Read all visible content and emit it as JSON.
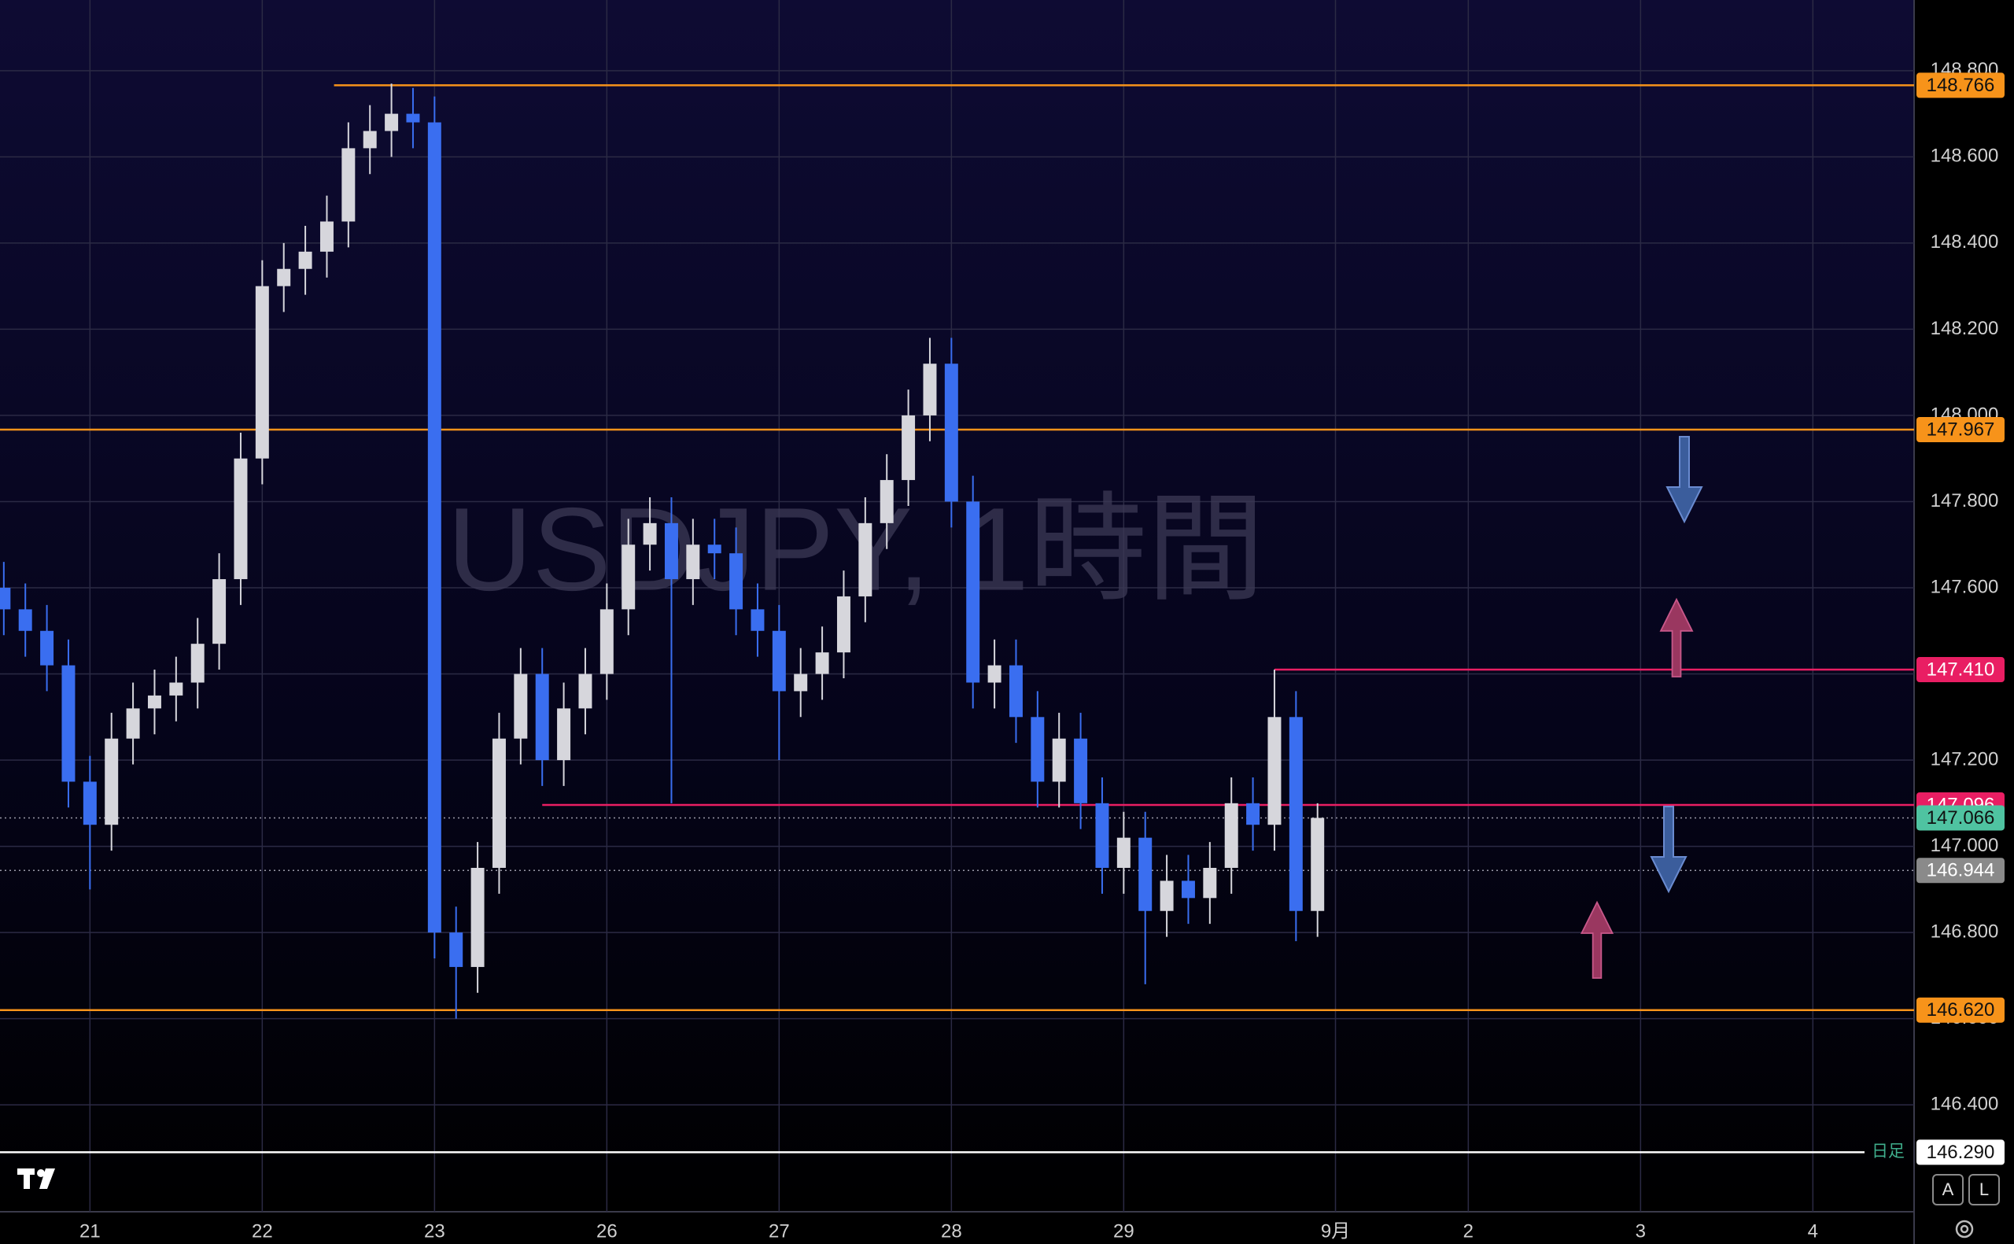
{
  "chart_data": {
    "type": "candlestick",
    "title": "USDJPY, 1時間",
    "x": [
      -12,
      -9,
      -6,
      -3,
      0,
      3,
      6,
      9,
      12,
      15,
      18,
      21,
      24,
      27,
      30,
      33,
      36,
      39,
      42,
      45,
      48,
      51,
      54,
      57,
      60,
      63,
      66,
      69,
      72,
      75,
      78,
      81,
      84,
      87,
      90,
      93,
      96,
      99,
      102,
      105,
      108,
      111,
      114,
      117,
      120,
      123,
      126,
      129,
      132,
      135,
      138,
      141,
      144,
      147,
      150,
      153,
      156,
      159,
      162,
      165,
      168,
      171
    ],
    "open": [
      147.6,
      147.55,
      147.5,
      147.42,
      147.15,
      147.05,
      147.25,
      147.32,
      147.35,
      147.38,
      147.47,
      147.62,
      147.9,
      148.3,
      148.34,
      148.38,
      148.45,
      148.62,
      148.66,
      148.7,
      148.68,
      146.8,
      146.72,
      146.95,
      147.25,
      147.4,
      147.2,
      147.32,
      147.4,
      147.55,
      147.7,
      147.75,
      147.62,
      147.7,
      147.68,
      147.55,
      147.5,
      147.36,
      147.4,
      147.45,
      147.58,
      147.75,
      147.85,
      148.0,
      148.12,
      147.8,
      147.38,
      147.42,
      147.3,
      147.15,
      147.25,
      147.1,
      146.95,
      147.02,
      146.85,
      146.92,
      146.88,
      146.95,
      147.1,
      147.05,
      147.3,
      146.85
    ],
    "high": [
      147.66,
      147.61,
      147.56,
      147.48,
      147.21,
      147.31,
      147.38,
      147.41,
      147.44,
      147.53,
      147.68,
      147.96,
      148.36,
      148.4,
      148.44,
      148.51,
      148.68,
      148.72,
      148.77,
      148.76,
      148.74,
      146.86,
      147.01,
      147.31,
      147.46,
      147.46,
      147.38,
      147.46,
      147.61,
      147.76,
      147.81,
      147.81,
      147.76,
      147.76,
      147.74,
      147.61,
      147.56,
      147.46,
      147.51,
      147.64,
      147.81,
      147.91,
      148.06,
      148.18,
      148.18,
      147.86,
      147.48,
      147.48,
      147.36,
      147.31,
      147.31,
      147.16,
      147.08,
      147.08,
      146.98,
      146.98,
      147.01,
      147.16,
      147.16,
      147.41,
      147.36,
      147.1
    ],
    "low": [
      147.49,
      147.44,
      147.36,
      147.09,
      146.9,
      146.99,
      147.19,
      147.26,
      147.29,
      147.32,
      147.41,
      147.56,
      147.84,
      148.24,
      148.28,
      148.32,
      148.39,
      148.56,
      148.6,
      148.62,
      146.74,
      146.6,
      146.66,
      146.89,
      147.19,
      147.14,
      147.14,
      147.26,
      147.34,
      147.49,
      147.64,
      147.1,
      147.56,
      147.62,
      147.49,
      147.44,
      147.2,
      147.3,
      147.34,
      147.39,
      147.52,
      147.69,
      147.79,
      147.94,
      147.74,
      147.32,
      147.32,
      147.24,
      147.09,
      147.09,
      147.04,
      146.89,
      146.89,
      146.68,
      146.79,
      146.82,
      146.82,
      146.89,
      146.99,
      146.99,
      146.78,
      146.79
    ],
    "close": [
      147.55,
      147.5,
      147.42,
      147.15,
      147.05,
      147.25,
      147.32,
      147.35,
      147.38,
      147.47,
      147.62,
      147.9,
      148.3,
      148.34,
      148.38,
      148.45,
      148.62,
      148.66,
      148.7,
      148.68,
      146.8,
      146.72,
      146.95,
      147.25,
      147.4,
      147.2,
      147.32,
      147.4,
      147.55,
      147.7,
      147.75,
      147.62,
      147.7,
      147.68,
      147.55,
      147.5,
      147.36,
      147.4,
      147.45,
      147.58,
      147.75,
      147.85,
      148.0,
      148.12,
      147.8,
      147.38,
      147.42,
      147.3,
      147.15,
      147.25,
      147.1,
      146.95,
      147.02,
      146.85,
      146.92,
      146.88,
      146.95,
      147.1,
      147.05,
      147.3,
      146.85,
      147.066
    ],
    "up_color": "#d6d6dc",
    "down_color": "#3a6ef0",
    "xlim": [
      -12.53,
      254.1
    ],
    "xticks": [
      {
        "value": 0,
        "label": "21"
      },
      {
        "value": 24,
        "label": "22"
      },
      {
        "value": 48,
        "label": "23"
      },
      {
        "value": 72,
        "label": "26"
      },
      {
        "value": 96,
        "label": "27"
      },
      {
        "value": 120,
        "label": "28"
      },
      {
        "value": 144,
        "label": "29"
      },
      {
        "value": 173.5,
        "label": "9月"
      },
      {
        "value": 192,
        "label": "2"
      },
      {
        "value": 216,
        "label": "3"
      },
      {
        "value": 240,
        "label": "4"
      }
    ],
    "ylim": [
      146.152,
      148.964
    ],
    "yticks": [
      {
        "value": 146.4,
        "label": "146.400"
      },
      {
        "value": 146.6,
        "label": "146.600"
      },
      {
        "value": 146.8,
        "label": "146.800"
      },
      {
        "value": 147,
        "label": "147.000"
      },
      {
        "value": 147.2,
        "label": "147.200"
      },
      {
        "value": 147.4,
        "label": "147.400"
      },
      {
        "value": 147.6,
        "label": "147.600"
      },
      {
        "value": 147.8,
        "label": "147.800"
      },
      {
        "value": 148,
        "label": "148.000"
      },
      {
        "value": 148.2,
        "label": "148.200"
      },
      {
        "value": 148.4,
        "label": "148.400"
      },
      {
        "value": 148.6,
        "label": "148.600"
      },
      {
        "value": 148.8,
        "label": "148.800"
      }
    ],
    "grid": true,
    "levels": [
      {
        "value": 148.766,
        "label": "148.766",
        "color": "#f7931a",
        "label_text_color": "#111111",
        "from": 34
      },
      {
        "value": 147.967,
        "label": "147.967",
        "color": "#f7931a",
        "label_text_color": "#111111"
      },
      {
        "value": 147.41,
        "label": "147.410",
        "color": "#e91e63",
        "label_text_color": "#ffffff",
        "from": 165
      },
      {
        "value": 147.096,
        "label": "147.096",
        "color": "#e91e63",
        "label_text_color": "#ffffff",
        "from": 63
      },
      {
        "value": 147.066,
        "label": "147.066",
        "color": "#4fc3a1",
        "label_text_color": "#111111",
        "style": "dotted"
      },
      {
        "value": 146.944,
        "label": "146.944",
        "color": "#8a8a8a",
        "label_text_color": "#ffffff",
        "style": "dotted"
      },
      {
        "value": 146.62,
        "label": "146.620",
        "color": "#f7931a",
        "label_text_color": "#111111"
      },
      {
        "value": 146.29,
        "label": "146.290",
        "color": "#ffffff",
        "label_text_color": "#111111",
        "tag": "日足"
      }
    ],
    "buttons": [
      "A",
      "L"
    ]
  }
}
